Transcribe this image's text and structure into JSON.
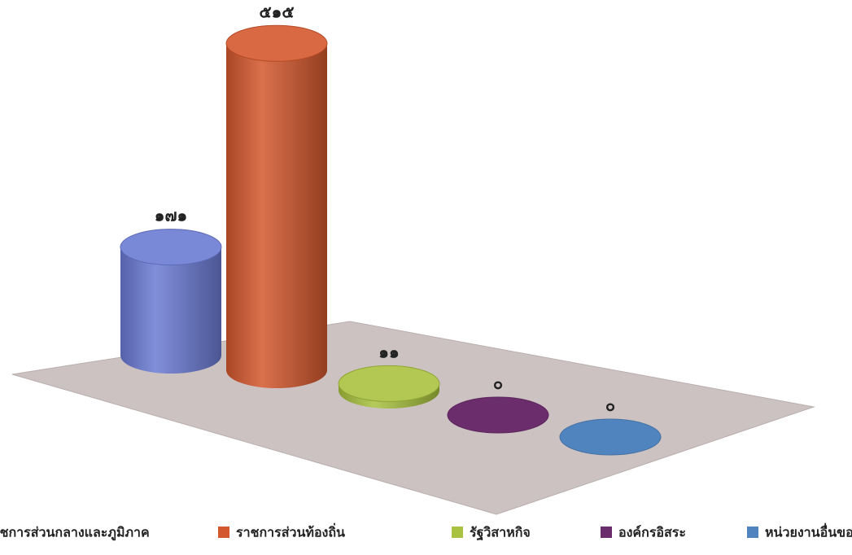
{
  "chart_data": {
    "type": "cylinder-bar",
    "categories": [
      "ราชการส่วนกลางและภูมิภาค",
      "ราชการส่วนท้องถิ่น",
      "รัฐวิสาหกิจ",
      "องค์กรอิสระ",
      "หน่วยงานอื่นของรัฐ"
    ],
    "values": [
      171,
      515,
      11,
      0,
      0
    ],
    "value_labels": [
      "๑๗๑",
      "๕๑๕",
      "๑๑",
      "๐",
      "๐"
    ],
    "colors": [
      "#6b7bd4",
      "#d4582e",
      "#a9c23f",
      "#6b2d6b",
      "#4f84bf"
    ]
  }
}
